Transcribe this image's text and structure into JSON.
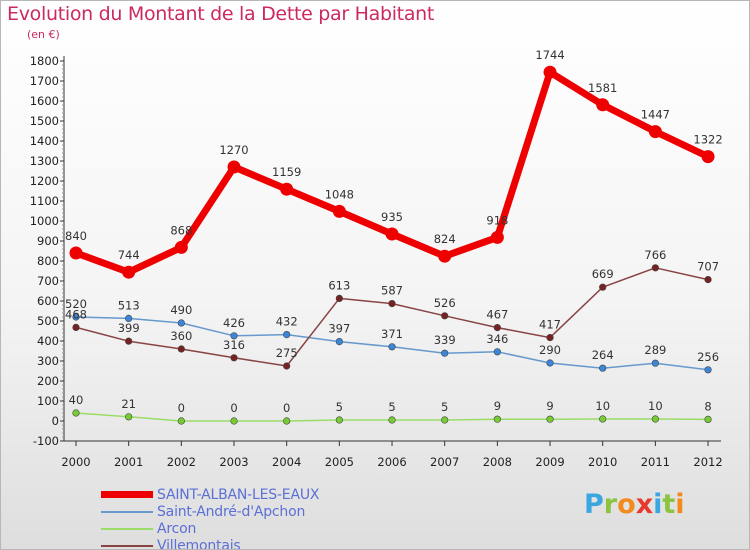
{
  "header": {
    "title": "Evolution du Montant de la Dette par Habitant",
    "unit": "(en €)"
  },
  "logo": {
    "text": "Proxiti",
    "letters": [
      "P",
      "r",
      "o",
      "x",
      "i",
      "t",
      "i"
    ],
    "colors": [
      "#3aa7e0",
      "#8bc43f",
      "#f28a1e",
      "#e8392e",
      "#3aa7e0",
      "#8bc43f",
      "#f28a1e"
    ]
  },
  "chart_data": {
    "type": "line",
    "title": "Evolution du Montant de la Dette par Habitant",
    "subtitle": "(en €)",
    "xlabel": "",
    "ylabel": "",
    "x": [
      "2000",
      "2001",
      "2002",
      "2003",
      "2004",
      "2005",
      "2006",
      "2007",
      "2008",
      "2009",
      "2010",
      "2011",
      "2012"
    ],
    "ylim": [
      -100,
      1800
    ],
    "yticks": [
      -100,
      0,
      100,
      200,
      300,
      400,
      500,
      600,
      700,
      800,
      900,
      1000,
      1100,
      1200,
      1300,
      1400,
      1500,
      1600,
      1700,
      1800
    ],
    "grid": false,
    "legend_position": "bottom-left",
    "series": [
      {
        "name": "SAINT-ALBAN-LES-EAUX",
        "values": [
          840,
          744,
          868,
          1270,
          1159,
          1048,
          935,
          824,
          918,
          1744,
          1581,
          1447,
          1322
        ],
        "labels": [
          "840",
          "744",
          "868",
          "1270",
          "1159",
          "1048",
          "935",
          "824",
          "918",
          "1744",
          "1581",
          "1447",
          "1322"
        ],
        "color": "#ee0000",
        "marker_color": "#ee0000",
        "thick": true
      },
      {
        "name": "Saint-André-d'Apchon",
        "values": [
          520,
          513,
          490,
          426,
          432,
          397,
          371,
          339,
          346,
          290,
          264,
          289,
          256
        ],
        "labels": [
          "520",
          "513",
          "490",
          "426",
          "432",
          "397",
          "371",
          "339",
          "346",
          "290",
          "264",
          "289",
          "256"
        ],
        "color": "#6699cc",
        "marker_color": "#3b86d8",
        "thick": false
      },
      {
        "name": "Arcon",
        "values": [
          40,
          21,
          0,
          0,
          0,
          5,
          5,
          5,
          9,
          9,
          10,
          10,
          8
        ],
        "labels": [
          "40",
          "21",
          "0",
          "0",
          "0",
          "5",
          "5",
          "5",
          "9",
          "9",
          "10",
          "10",
          "8"
        ],
        "color": "#99dd66",
        "marker_color": "#77cc33",
        "thick": false
      },
      {
        "name": "Villemontais",
        "values": [
          468,
          399,
          360,
          316,
          275,
          613,
          587,
          526,
          467,
          417,
          669,
          766,
          707
        ],
        "labels": [
          "468",
          "399",
          "360",
          "316",
          "275",
          "613",
          "587",
          "526",
          "467",
          "417",
          "669",
          "766",
          "707"
        ],
        "color": "#884444",
        "marker_color": "#772222",
        "thick": false
      }
    ]
  }
}
